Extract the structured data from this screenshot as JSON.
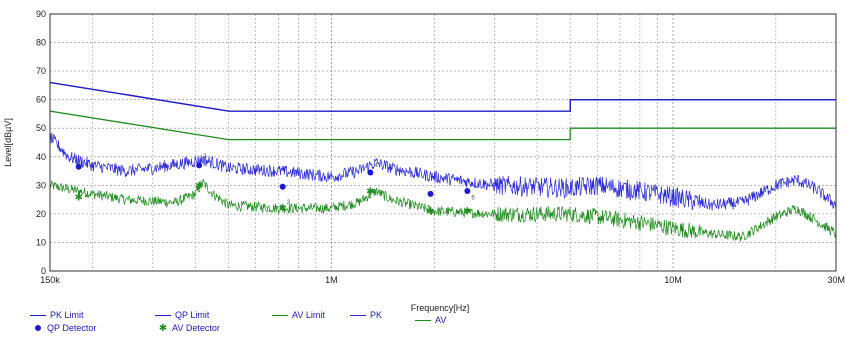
{
  "chart_data": {
    "type": "line",
    "xscale": "log",
    "xlim": [
      150000,
      30000000
    ],
    "ylim": [
      0,
      90
    ],
    "xlabel": "Frequency[Hz]",
    "ylabel": "Level[dBµV]",
    "x_tick_labels": [
      {
        "x": 150000,
        "label": "150k"
      },
      {
        "x": 1000000,
        "label": "1M"
      },
      {
        "x": 10000000,
        "label": "10M"
      },
      {
        "x": 30000000,
        "label": "30M"
      }
    ],
    "y_ticks": [
      0,
      10,
      20,
      30,
      40,
      50,
      60,
      70,
      80,
      90
    ],
    "grid": true,
    "legend_position": "bottom-left",
    "colors": {
      "pk_limit": "#1f1fc8",
      "qp_limit": "#1f1fc8",
      "av_limit": "#1e8a1e",
      "pk": "#2a2ad6",
      "av": "#1c8c1c",
      "qp_detector": "#1a1ad0",
      "av_detector": "#1f8f1f"
    },
    "legend": {
      "pk_limit": "PK Limit",
      "qp_limit": "QP Limit",
      "av_limit": "AV Limit",
      "pk": "PK",
      "av": "AV",
      "qp_detector": "QP Detector",
      "av_detector": "AV Detector"
    },
    "series": [
      {
        "name": "PK Limit",
        "style": "line",
        "points": [
          [
            150000,
            66
          ],
          [
            500000,
            56
          ],
          [
            5000000,
            56
          ],
          [
            5000000,
            60
          ],
          [
            30000000,
            60
          ]
        ]
      },
      {
        "name": "QP Limit",
        "style": "line",
        "points": [
          [
            150000,
            66
          ],
          [
            500000,
            56
          ],
          [
            5000000,
            56
          ],
          [
            5000000,
            60
          ],
          [
            30000000,
            60
          ]
        ]
      },
      {
        "name": "AV Limit",
        "style": "line",
        "points": [
          [
            150000,
            56
          ],
          [
            500000,
            46
          ],
          [
            5000000,
            46
          ],
          [
            5000000,
            50
          ],
          [
            30000000,
            50
          ]
        ]
      },
      {
        "name": "PK",
        "style": "noisy",
        "amplitude": 2.2,
        "points": [
          [
            150000,
            47
          ],
          [
            170000,
            40
          ],
          [
            200000,
            37
          ],
          [
            250000,
            35
          ],
          [
            300000,
            36
          ],
          [
            380000,
            38
          ],
          [
            420000,
            39
          ],
          [
            450000,
            38
          ],
          [
            500000,
            36
          ],
          [
            700000,
            35
          ],
          [
            1000000,
            33
          ],
          [
            1200000,
            35
          ],
          [
            1350000,
            38
          ],
          [
            1500000,
            36
          ],
          [
            2000000,
            33
          ],
          [
            3000000,
            30
          ],
          [
            5000000,
            29
          ],
          [
            6000000,
            30
          ],
          [
            8000000,
            28
          ],
          [
            10000000,
            26
          ],
          [
            13000000,
            23
          ],
          [
            16000000,
            24
          ],
          [
            20000000,
            30
          ],
          [
            23000000,
            32
          ],
          [
            26000000,
            29
          ],
          [
            30000000,
            23
          ]
        ]
      },
      {
        "name": "AV",
        "style": "noisy",
        "amplitude": 1.8,
        "points": [
          [
            150000,
            30
          ],
          [
            200000,
            27
          ],
          [
            250000,
            25
          ],
          [
            350000,
            24
          ],
          [
            400000,
            27
          ],
          [
            420000,
            31
          ],
          [
            450000,
            27
          ],
          [
            500000,
            23
          ],
          [
            700000,
            22
          ],
          [
            1000000,
            22
          ],
          [
            1200000,
            24
          ],
          [
            1350000,
            28
          ],
          [
            1500000,
            25
          ],
          [
            2000000,
            21
          ],
          [
            3000000,
            20
          ],
          [
            5000000,
            20
          ],
          [
            6000000,
            19
          ],
          [
            8000000,
            17
          ],
          [
            10000000,
            15
          ],
          [
            13000000,
            13
          ],
          [
            16000000,
            12
          ],
          [
            20000000,
            19
          ],
          [
            23000000,
            22
          ],
          [
            26000000,
            18
          ],
          [
            30000000,
            13
          ]
        ]
      },
      {
        "name": "QP Detector",
        "style": "dots",
        "points": [
          [
            182000,
            36.5
          ],
          [
            410000,
            37
          ],
          [
            720000,
            29.5
          ],
          [
            1300000,
            34.5
          ],
          [
            1950000,
            27
          ],
          [
            2500000,
            28
          ]
        ]
      },
      {
        "name": "AV Detector",
        "style": "stars",
        "points": [
          [
            182000,
            26
          ],
          [
            410000,
            30
          ],
          [
            720000,
            22
          ],
          [
            1300000,
            28
          ],
          [
            1950000,
            21
          ],
          [
            2500000,
            21
          ]
        ]
      }
    ],
    "marker_labels": [
      {
        "x": 410000,
        "y": 39.5,
        "text": "2"
      },
      {
        "x": 720000,
        "y": 23.5,
        "text": "3"
      },
      {
        "x": 1300000,
        "y": 36.5,
        "text": "4"
      },
      {
        "x": 2500000,
        "y": 25,
        "text": "6"
      }
    ]
  }
}
